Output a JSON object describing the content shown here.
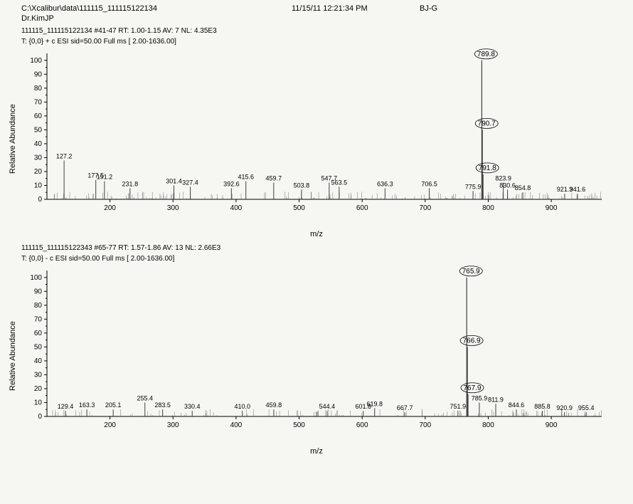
{
  "header": {
    "path": "C:\\Xcalibur\\data\\111115_111115122134",
    "datetime": "11/15/11 12:21:34 PM",
    "user": "BJ-G",
    "sub": "Dr.KimJP"
  },
  "axis": {
    "ylabel": "Relative Abundance",
    "xlabel": "m/z",
    "yticks": [
      0,
      10,
      20,
      30,
      40,
      50,
      60,
      70,
      80,
      90,
      100
    ],
    "xticks": [
      200,
      300,
      400,
      500,
      600,
      700,
      800,
      900
    ],
    "xlim": [
      100,
      980
    ],
    "ylim": [
      0,
      105
    ]
  },
  "style": {
    "axis_color": "#000000",
    "peak_color": "#404040",
    "bg": "#f6f6f3",
    "label_fontsize": 9,
    "tick_fontsize": 10
  },
  "panels": [
    {
      "meta1": "111115_111115122134 #41-47  RT: 1.00-1.15  AV: 7  NL: 4.35E3",
      "meta2": "T: {0,0} + c ESI sid=50.00  Full ms [ 2.00-1636.00]",
      "circled_peaks": [
        {
          "mz": 789.8,
          "h": 100
        },
        {
          "mz": 790.7,
          "h": 50
        },
        {
          "mz": 791.8,
          "h": 18
        }
      ],
      "labeled_peaks": [
        {
          "mz": 127.2,
          "h": 28
        },
        {
          "mz": 177.5,
          "h": 14
        },
        {
          "mz": 191.2,
          "h": 13
        },
        {
          "mz": 231.8,
          "h": 8
        },
        {
          "mz": 301.4,
          "h": 10
        },
        {
          "mz": 327.4,
          "h": 9
        },
        {
          "mz": 392.6,
          "h": 8
        },
        {
          "mz": 415.6,
          "h": 13
        },
        {
          "mz": 459.7,
          "h": 12
        },
        {
          "mz": 503.8,
          "h": 7
        },
        {
          "mz": 547.7,
          "h": 12
        },
        {
          "mz": 563.5,
          "h": 9
        },
        {
          "mz": 636.3,
          "h": 8
        },
        {
          "mz": 706.5,
          "h": 8
        },
        {
          "mz": 775.9,
          "h": 6
        },
        {
          "mz": 823.9,
          "h": 12
        },
        {
          "mz": 830.6,
          "h": 7
        },
        {
          "mz": 854.8,
          "h": 5
        },
        {
          "mz": 921.3,
          "h": 4
        },
        {
          "mz": 941.6,
          "h": 4
        }
      ],
      "noise_density": 160
    },
    {
      "meta1": "111115_111115122343 #65-77  RT: 1.57-1.86  AV: 13  NL: 2.66E3",
      "meta2": "T: {0,0} - c ESI sid=50.00  Full ms [ 2.00-1636.00]",
      "circled_peaks": [
        {
          "mz": 765.9,
          "h": 100
        },
        {
          "mz": 766.9,
          "h": 50
        },
        {
          "mz": 767.9,
          "h": 16
        }
      ],
      "labeled_peaks": [
        {
          "mz": 129.4,
          "h": 4
        },
        {
          "mz": 163.3,
          "h": 5
        },
        {
          "mz": 205.1,
          "h": 5
        },
        {
          "mz": 255.4,
          "h": 10
        },
        {
          "mz": 283.5,
          "h": 5
        },
        {
          "mz": 330.4,
          "h": 4
        },
        {
          "mz": 410.0,
          "h": 4
        },
        {
          "mz": 459.8,
          "h": 5
        },
        {
          "mz": 544.4,
          "h": 4
        },
        {
          "mz": 601.8,
          "h": 4
        },
        {
          "mz": 619.8,
          "h": 6
        },
        {
          "mz": 667.7,
          "h": 3
        },
        {
          "mz": 751.9,
          "h": 4
        },
        {
          "mz": 785.9,
          "h": 10
        },
        {
          "mz": 811.9,
          "h": 9
        },
        {
          "mz": 844.6,
          "h": 5
        },
        {
          "mz": 885.8,
          "h": 4
        },
        {
          "mz": 920.9,
          "h": 3
        },
        {
          "mz": 955.4,
          "h": 3
        }
      ],
      "noise_density": 120
    }
  ]
}
